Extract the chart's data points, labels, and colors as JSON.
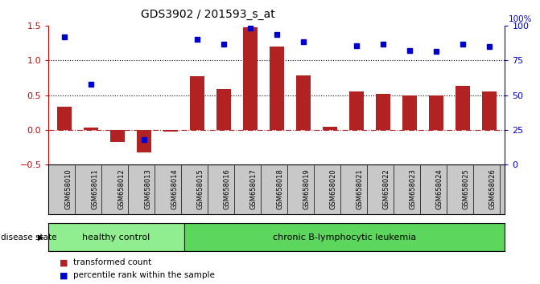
{
  "title": "GDS3902 / 201593_s_at",
  "samples": [
    "GSM658010",
    "GSM658011",
    "GSM658012",
    "GSM658013",
    "GSM658014",
    "GSM658015",
    "GSM658016",
    "GSM658017",
    "GSM658018",
    "GSM658019",
    "GSM658020",
    "GSM658021",
    "GSM658022",
    "GSM658023",
    "GSM658024",
    "GSM658025",
    "GSM658026"
  ],
  "bar_values": [
    0.33,
    0.03,
    -0.17,
    -0.32,
    -0.02,
    0.77,
    0.59,
    1.47,
    1.2,
    0.78,
    0.04,
    0.55,
    0.52,
    0.5,
    0.5,
    0.63,
    0.55
  ],
  "dot_values": [
    1.38,
    0.87,
    null,
    0.27,
    null,
    1.35,
    1.3,
    1.47,
    1.4,
    1.33,
    null,
    1.28,
    1.3,
    1.23,
    1.22,
    1.3,
    1.27
  ],
  "dot_scale_max": 1.5,
  "dot_percentile_max": 100,
  "bar_color": "#b22222",
  "dot_color": "#0000cc",
  "ylim_left": [
    -0.5,
    1.5
  ],
  "ylim_right": [
    0,
    100
  ],
  "yticks_left": [
    -0.5,
    0.0,
    0.5,
    1.0,
    1.5
  ],
  "yticks_right": [
    0,
    25,
    50,
    75,
    100
  ],
  "hlines": [
    0.0,
    0.5,
    1.0
  ],
  "hline_styles": [
    "-.",
    ":",
    ":"
  ],
  "hline_colors": [
    "#b22222",
    "black",
    "black"
  ],
  "healthy_count": 5,
  "healthy_label": "healthy control",
  "leukemia_label": "chronic B-lymphocytic leukemia",
  "healthy_color": "#90ee90",
  "leukemia_color": "#5cd65c",
  "disease_state_label": "disease state",
  "legend_bar_label": "transformed count",
  "legend_dot_label": "percentile rank within the sample",
  "tick_label_color_left": "#cc0000",
  "tick_label_color_right": "#0000cc",
  "xlabel_gray_bg": "#c8c8c8",
  "bar_width": 0.55
}
